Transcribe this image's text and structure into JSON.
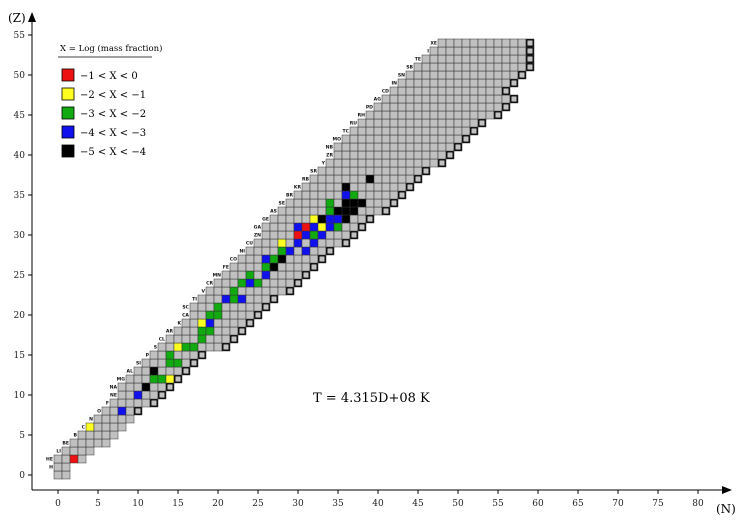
{
  "chart_data": {
    "type": "heatmap",
    "xlabel": "(N)",
    "ylabel": "(Z)",
    "xlim": [
      0,
      80
    ],
    "ylim": [
      0,
      55
    ],
    "x_ticks": [
      "0",
      "5",
      "10",
      "15",
      "20",
      "25",
      "30",
      "35",
      "40",
      "45",
      "50",
      "55",
      "60",
      "65",
      "70",
      "75",
      "80"
    ],
    "y_ticks": [
      "0",
      "5",
      "10",
      "15",
      "20",
      "25",
      "30",
      "35",
      "40",
      "45",
      "50",
      "55"
    ],
    "annotation": "T = 4.315D+08 K",
    "legend": {
      "title": "X = Log (mass fraction)",
      "entries": [
        {
          "label": "−1 < X < 0",
          "color": "#ee1111"
        },
        {
          "label": "−2 < X < −1",
          "color": "#ffff22"
        },
        {
          "label": "−3 < X < −2",
          "color": "#11aa11"
        },
        {
          "label": "−4 < X < −3",
          "color": "#1111ee"
        },
        {
          "label": "−5 < X < −4",
          "color": "#000000"
        }
      ]
    },
    "colors": {
      "background_cell": "#c0c0c0",
      "stable_outline": "#000000"
    },
    "element_labels": [
      {
        "label": "H",
        "z": 1
      },
      {
        "label": "HE",
        "z": 2
      },
      {
        "label": "LI",
        "z": 3
      },
      {
        "label": "BE",
        "z": 4
      },
      {
        "label": "B",
        "z": 5
      },
      {
        "label": "C",
        "z": 6
      },
      {
        "label": "N",
        "z": 7
      },
      {
        "label": "O",
        "z": 8
      },
      {
        "label": "F",
        "z": 9
      },
      {
        "label": "NE",
        "z": 10
      },
      {
        "label": "NA",
        "z": 11
      },
      {
        "label": "MG",
        "z": 12
      },
      {
        "label": "AL",
        "z": 13
      },
      {
        "label": "SI",
        "z": 14
      },
      {
        "label": "P",
        "z": 15
      },
      {
        "label": "S",
        "z": 16
      },
      {
        "label": "CL",
        "z": 17
      },
      {
        "label": "AR",
        "z": 18
      },
      {
        "label": "K",
        "z": 19
      },
      {
        "label": "CA",
        "z": 20
      },
      {
        "label": "SC",
        "z": 21
      },
      {
        "label": "TI",
        "z": 22
      },
      {
        "label": "V",
        "z": 23
      },
      {
        "label": "CR",
        "z": 24
      },
      {
        "label": "MN",
        "z": 25
      },
      {
        "label": "FE",
        "z": 26
      },
      {
        "label": "CO",
        "z": 27
      },
      {
        "label": "NI",
        "z": 28
      },
      {
        "label": "CU",
        "z": 29
      },
      {
        "label": "ZN",
        "z": 30
      },
      {
        "label": "GA",
        "z": 31
      },
      {
        "label": "GE",
        "z": 32
      },
      {
        "label": "AS",
        "z": 33
      },
      {
        "label": "SE",
        "z": 34
      },
      {
        "label": "BR",
        "z": 35
      },
      {
        "label": "KR",
        "z": 36
      },
      {
        "label": "RB",
        "z": 37
      },
      {
        "label": "SR",
        "z": 38
      },
      {
        "label": "Y",
        "z": 39
      },
      {
        "label": "ZR",
        "z": 40
      },
      {
        "label": "NB",
        "z": 41
      },
      {
        "label": "MO",
        "z": 42
      },
      {
        "label": "TC",
        "z": 43
      },
      {
        "label": "RU",
        "z": 44
      },
      {
        "label": "RH",
        "z": 45
      },
      {
        "label": "PD",
        "z": 46
      },
      {
        "label": "AG",
        "z": 47
      },
      {
        "label": "CD",
        "z": 48
      },
      {
        "label": "IN",
        "z": 49
      },
      {
        "label": "SN",
        "z": 50
      },
      {
        "label": "SB",
        "z": 51
      },
      {
        "label": "TE",
        "z": 52
      },
      {
        "label": "I",
        "z": 53
      },
      {
        "label": "XE",
        "z": 54
      }
    ],
    "abundance_cells": [
      {
        "n": 2,
        "z": 2,
        "level": 0
      },
      {
        "n": 4,
        "z": 6,
        "level": 1
      },
      {
        "n": 8,
        "z": 8,
        "level": 3
      },
      {
        "n": 10,
        "z": 10,
        "level": 3
      },
      {
        "n": 11,
        "z": 11,
        "level": 4
      },
      {
        "n": 12,
        "z": 12,
        "level": 2
      },
      {
        "n": 13,
        "z": 12,
        "level": 2
      },
      {
        "n": 12,
        "z": 13,
        "level": 4
      },
      {
        "n": 14,
        "z": 12,
        "level": 1
      },
      {
        "n": 14,
        "z": 14,
        "level": 2
      },
      {
        "n": 15,
        "z": 14,
        "level": 2
      },
      {
        "n": 14,
        "z": 15,
        "level": 2
      },
      {
        "n": 15,
        "z": 16,
        "level": 1
      },
      {
        "n": 16,
        "z": 16,
        "level": 2
      },
      {
        "n": 17,
        "z": 16,
        "level": 2
      },
      {
        "n": 18,
        "z": 17,
        "level": 2
      },
      {
        "n": 18,
        "z": 18,
        "level": 2
      },
      {
        "n": 19,
        "z": 18,
        "level": 2
      },
      {
        "n": 18,
        "z": 19,
        "level": 1
      },
      {
        "n": 19,
        "z": 19,
        "level": 3
      },
      {
        "n": 19,
        "z": 20,
        "level": 2
      },
      {
        "n": 20,
        "z": 20,
        "level": 2
      },
      {
        "n": 20,
        "z": 21,
        "level": 2
      },
      {
        "n": 22,
        "z": 22,
        "level": 2
      },
      {
        "n": 21,
        "z": 22,
        "level": 3
      },
      {
        "n": 23,
        "z": 22,
        "level": 3
      },
      {
        "n": 22,
        "z": 23,
        "level": 2
      },
      {
        "n": 24,
        "z": 24,
        "level": 3
      },
      {
        "n": 23,
        "z": 24,
        "level": 2
      },
      {
        "n": 25,
        "z": 24,
        "level": 2
      },
      {
        "n": 24,
        "z": 25,
        "level": 2
      },
      {
        "n": 26,
        "z": 25,
        "level": 3
      },
      {
        "n": 26,
        "z": 26,
        "level": 2
      },
      {
        "n": 27,
        "z": 26,
        "level": 4
      },
      {
        "n": 26,
        "z": 27,
        "level": 3
      },
      {
        "n": 27,
        "z": 27,
        "level": 2
      },
      {
        "n": 28,
        "z": 27,
        "level": 4
      },
      {
        "n": 28,
        "z": 28,
        "level": 2
      },
      {
        "n": 29,
        "z": 28,
        "level": 3
      },
      {
        "n": 31,
        "z": 28,
        "level": 3
      },
      {
        "n": 28,
        "z": 29,
        "level": 1
      },
      {
        "n": 30,
        "z": 29,
        "level": 3
      },
      {
        "n": 32,
        "z": 29,
        "level": 3
      },
      {
        "n": 30,
        "z": 30,
        "level": 0
      },
      {
        "n": 31,
        "z": 30,
        "level": 3
      },
      {
        "n": 32,
        "z": 30,
        "level": 2
      },
      {
        "n": 33,
        "z": 30,
        "level": 3
      },
      {
        "n": 30,
        "z": 31,
        "level": 3
      },
      {
        "n": 31,
        "z": 31,
        "level": 0
      },
      {
        "n": 32,
        "z": 31,
        "level": 3
      },
      {
        "n": 33,
        "z": 31,
        "level": 1
      },
      {
        "n": 34,
        "z": 31,
        "level": 3
      },
      {
        "n": 35,
        "z": 31,
        "level": 2
      },
      {
        "n": 32,
        "z": 32,
        "level": 1
      },
      {
        "n": 33,
        "z": 32,
        "level": 4
      },
      {
        "n": 34,
        "z": 32,
        "level": 3
      },
      {
        "n": 35,
        "z": 32,
        "level": 3
      },
      {
        "n": 36,
        "z": 32,
        "level": 4
      },
      {
        "n": 34,
        "z": 33,
        "level": 2
      },
      {
        "n": 35,
        "z": 33,
        "level": 4
      },
      {
        "n": 36,
        "z": 33,
        "level": 4
      },
      {
        "n": 37,
        "z": 33,
        "level": 4
      },
      {
        "n": 34,
        "z": 34,
        "level": 2
      },
      {
        "n": 36,
        "z": 34,
        "level": 4
      },
      {
        "n": 37,
        "z": 34,
        "level": 4
      },
      {
        "n": 38,
        "z": 34,
        "level": 4
      },
      {
        "n": 36,
        "z": 35,
        "level": 3
      },
      {
        "n": 37,
        "z": 35,
        "level": 2
      },
      {
        "n": 36,
        "z": 36,
        "level": 4
      },
      {
        "n": 39,
        "z": 37,
        "level": 4
      }
    ]
  }
}
